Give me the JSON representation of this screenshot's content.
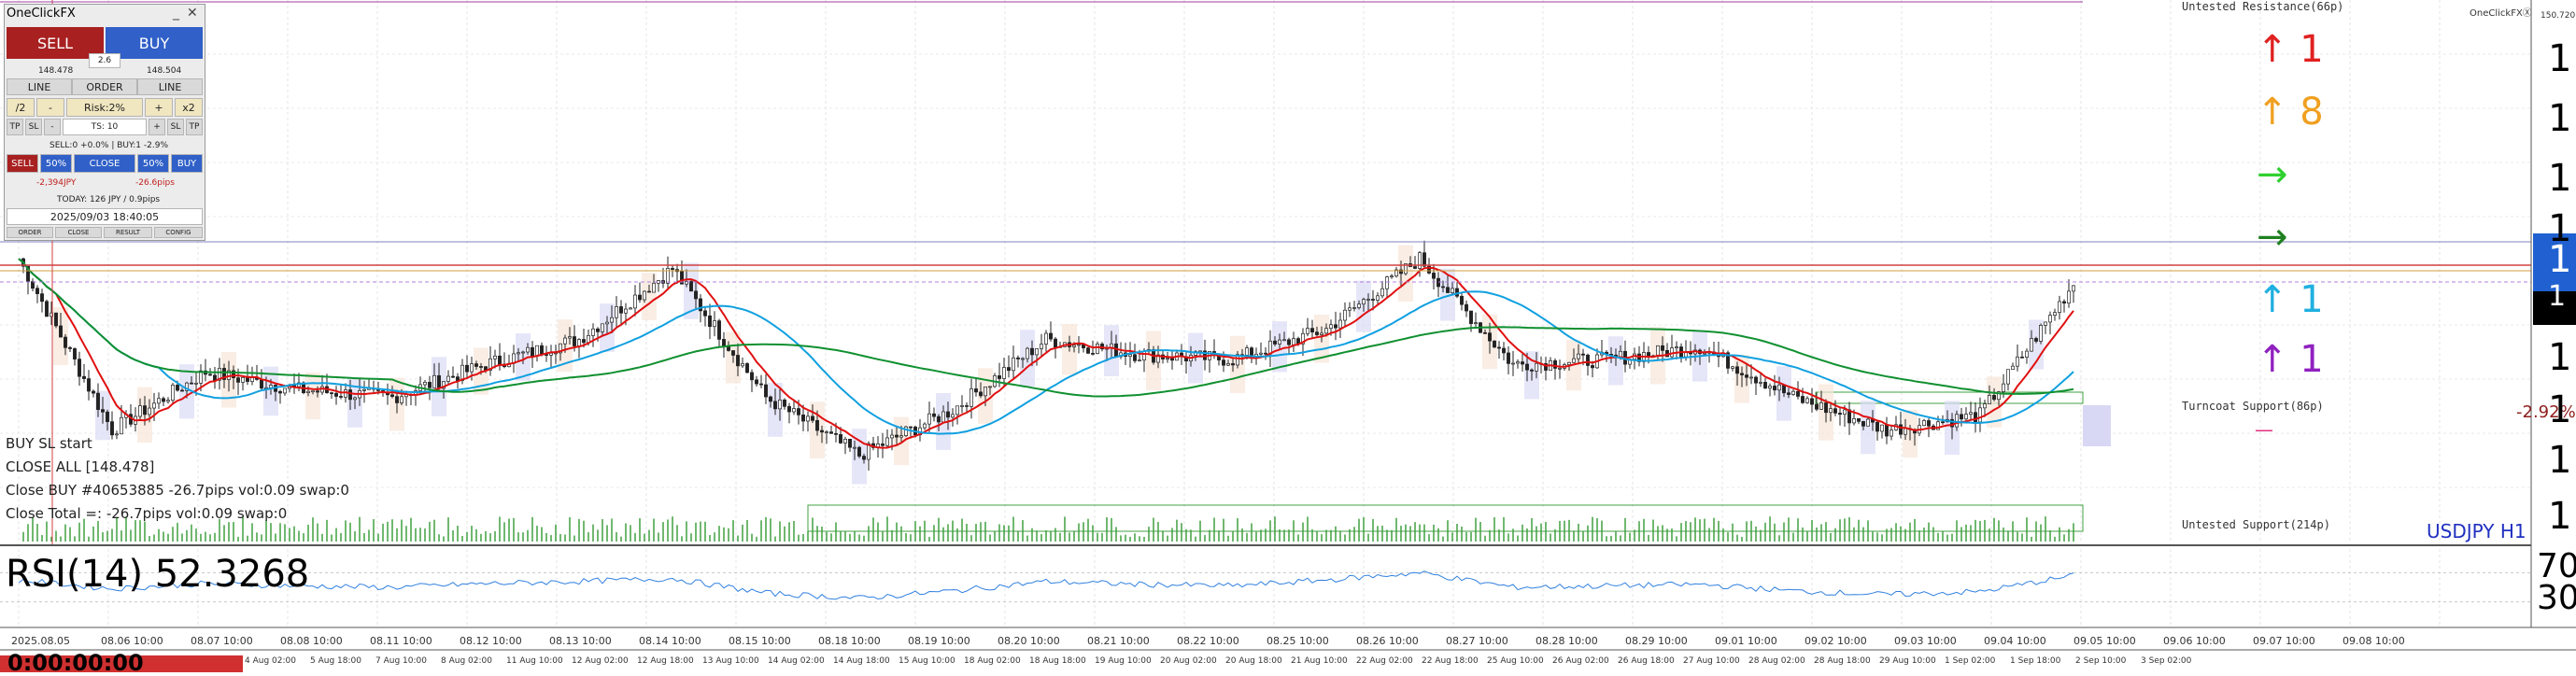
{
  "panel": {
    "title": "OneClickFX",
    "sell_label": "SELL",
    "buy_label": "BUY",
    "spread": "2.6",
    "sell_price": "148.478",
    "buy_price": "148.504",
    "line_left": "LINE",
    "order": "ORDER",
    "line_right": "LINE",
    "half": "/2",
    "minus": "-",
    "risk": "Risk:2%",
    "plus": "+",
    "double": "x2",
    "tp_left": "TP",
    "sl_left": "SL",
    "minus2": "-",
    "ts": "TS: 10",
    "plus2": "+",
    "sl_right": "SL",
    "tp_right": "TP",
    "position_info": "SELL:0 +0.0% | BUY:1 -2.9%",
    "sell_small": "SELL",
    "pct_left": "50%",
    "close": "CLOSE",
    "pct_right": "50%",
    "buy_small": "BUY",
    "pnl_jpy": "-2,394JPY",
    "pnl_pips": "-26.6pips",
    "today": "TODAY: 126 JPY / 0.9pips",
    "datetime": "2025/09/03  18:40:05",
    "tabs": [
      "ORDER",
      "CLOSE",
      "RESULT",
      "CONFIG"
    ]
  },
  "log_lines": [
    "BUY SL start",
    "CLOSE ALL [148.478]",
    "Close BUY #40653885 -26.7pips vol:0.09 swap:0",
    "Close Total =: -26.7pips vol:0.09 swap:0"
  ],
  "labels": {
    "onclickfx": "OneClickFXⓍ",
    "price_top": "150.720",
    "untested_resistance": "Untested Resistance(66p)",
    "turncoat_support": "Turncoat Support(86p)",
    "untested_support": "Untested Support(214p)",
    "pct_change": "-2.92%",
    "symbol": "USDJPY H1",
    "rsi": "RSI(14) 52.3268",
    "rsi_right_top": "70",
    "rsi_right_bottom": "30",
    "countdown": "0:00:00:00"
  },
  "signals": [
    {
      "glyph": "↑ 1",
      "color": "#e02020"
    },
    {
      "glyph": "↑ 8",
      "color": "#f0a020"
    },
    {
      "glyph": "→",
      "color": "#30d030"
    },
    {
      "glyph": "→",
      "color": "#208020"
    },
    {
      "glyph": "↑ 1",
      "color": "#20b0e0"
    },
    {
      "glyph": "↑ 1",
      "color": "#9020c0"
    }
  ],
  "price_scale": [
    "1",
    "1",
    "1",
    "1",
    "1",
    "1",
    "1",
    "1",
    "1",
    "1"
  ],
  "x_labels": [
    "2025.08.05",
    "08.06 10:00",
    "08.07 10:00",
    "08.08 10:00",
    "08.11 10:00",
    "08.12 10:00",
    "08.13 10:00",
    "08.14 10:00",
    "08.15 10:00",
    "08.18 10:00",
    "08.19 10:00",
    "08.20 10:00",
    "08.21 10:00",
    "08.22 10:00",
    "08.25 10:00",
    "08.26 10:00",
    "08.27 10:00",
    "08.28 10:00",
    "08.29 10:00",
    "09.01 10:00",
    "09.02 10:00",
    "09.03 10:00",
    "09.04 10:00",
    "09.05 10:00",
    "09.06 10:00",
    "09.07 10:00",
    "09.08 10:00"
  ],
  "x_labels2": [
    "4 Aug 02:00",
    "5 Aug 18:00",
    "7 Aug 10:00",
    "8 Aug 02:00",
    "11 Aug 10:00",
    "12 Aug 02:00",
    "12 Aug 18:00",
    "13 Aug 10:00",
    "14 Aug 02:00",
    "14 Aug 18:00",
    "15 Aug 10:00",
    "18 Aug 02:00",
    "18 Aug 18:00",
    "19 Aug 10:00",
    "20 Aug 02:00",
    "20 Aug 18:00",
    "21 Aug 10:00",
    "22 Aug 02:00",
    "22 Aug 18:00",
    "25 Aug 10:00",
    "26 Aug 02:00",
    "26 Aug 18:00",
    "27 Aug 10:00",
    "28 Aug 02:00",
    "28 Aug 18:00",
    "29 Aug 10:00",
    "1 Sep 02:00",
    "1 Sep 18:00",
    "2 Sep 10:00",
    "3 Sep 02:00"
  ],
  "chart_data": {
    "type": "candlestick",
    "symbol": "USDJPY H1",
    "x": [
      "2025.08.05",
      "08.06 10:00",
      "08.07 10:00",
      "08.08 10:00",
      "08.11 10:00",
      "08.12 10:00",
      "08.13 10:00",
      "08.14 10:00",
      "08.15 10:00",
      "08.18 10:00",
      "08.19 10:00",
      "08.20 10:00",
      "08.21 10:00",
      "08.22 10:00",
      "08.25 10:00",
      "08.26 10:00",
      "08.27 10:00",
      "08.28 10:00",
      "08.29 10:00",
      "09.01 10:00",
      "09.02 10:00",
      "09.03 10:00",
      "09.04 10:00"
    ],
    "close_rel": [
      0.9,
      0.22,
      0.45,
      0.38,
      0.35,
      0.48,
      0.58,
      0.86,
      0.35,
      0.12,
      0.3,
      0.58,
      0.52,
      0.5,
      0.62,
      0.9,
      0.48,
      0.5,
      0.55,
      0.35,
      0.22,
      0.28,
      0.8
    ],
    "rsi_series": [
      60,
      48,
      55,
      52,
      50,
      55,
      58,
      62,
      42,
      35,
      45,
      58,
      54,
      52,
      60,
      70,
      50,
      52,
      54,
      45,
      40,
      44,
      66
    ]
  }
}
